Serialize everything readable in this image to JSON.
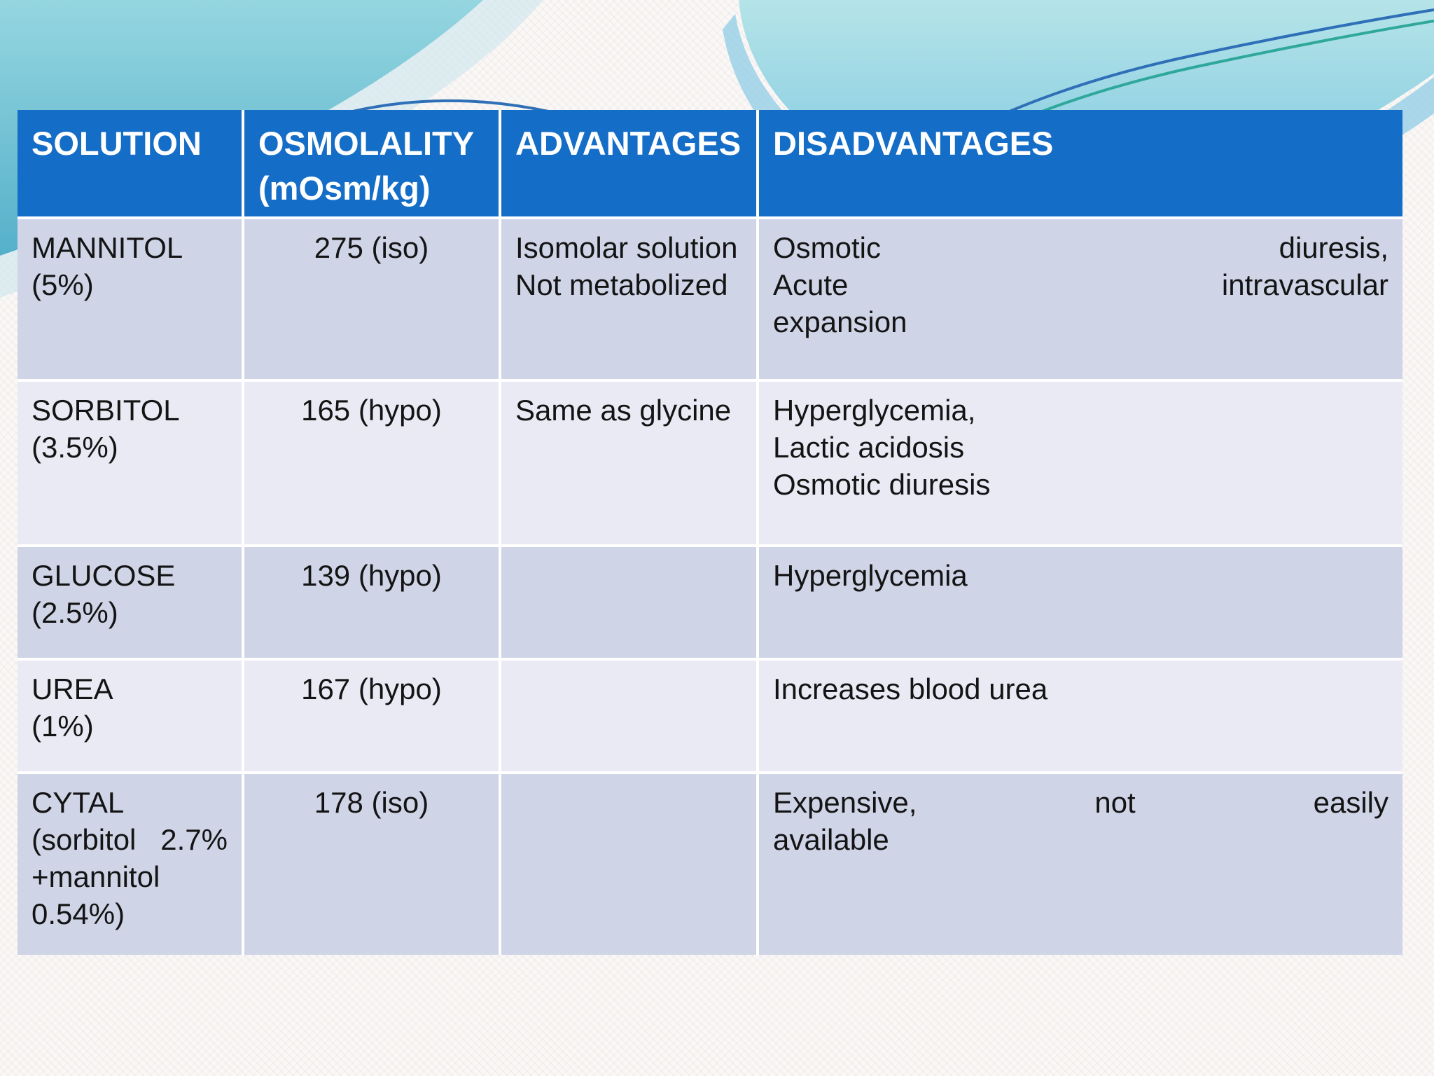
{
  "slide": {
    "type": "presentation-slide-table",
    "colors": {
      "header_bg": "#146DC7",
      "header_text": "#FFFFFF",
      "row_dark": "#CFD4E7",
      "row_light": "#E9EAF4",
      "body_text": "#141414",
      "wave_teal_dark": "#55B0CA",
      "wave_teal_light": "#95D6E0",
      "wave_aqua_light": "#B5E4E8",
      "wave_blue_band": "#8FCCE5",
      "arc_blue": "#2E6FB7",
      "arc_green": "#2FA89B"
    }
  },
  "table": {
    "columns": {
      "solution": "SOLUTION",
      "osmolality": "OSMOLALITY\n(mOsm/kg)",
      "advantages": "ADVANTAGES",
      "disadvantages": "DISADVANTAGES"
    },
    "rows": [
      {
        "solution": "MANNITOL\n(5%)",
        "osmolality": "275 (iso)",
        "advantages": "Isomolar solution\nNot metabolized",
        "disadvantages": "Osmotic diuresis,\nAcute intravascular\nexpansion"
      },
      {
        "solution": "SORBITOL\n(3.5%)",
        "osmolality": "165 (hypo)",
        "advantages": "Same as glycine",
        "disadvantages": "Hyperglycemia,\nLactic acidosis\nOsmotic diuresis"
      },
      {
        "solution": "GLUCOSE\n(2.5%)",
        "osmolality": "139 (hypo)",
        "advantages": "",
        "disadvantages": "Hyperglycemia"
      },
      {
        "solution": "UREA\n(1%)",
        "osmolality": "167 (hypo)",
        "advantages": "",
        "disadvantages": "Increases blood urea"
      },
      {
        "solution": "CYTAL\n(sorbitol 2.7%\n+mannitol\n0.54%)",
        "osmolality": "178 (iso)",
        "advantages": "",
        "disadvantages": "Expensive, not easily\navailable"
      }
    ]
  }
}
